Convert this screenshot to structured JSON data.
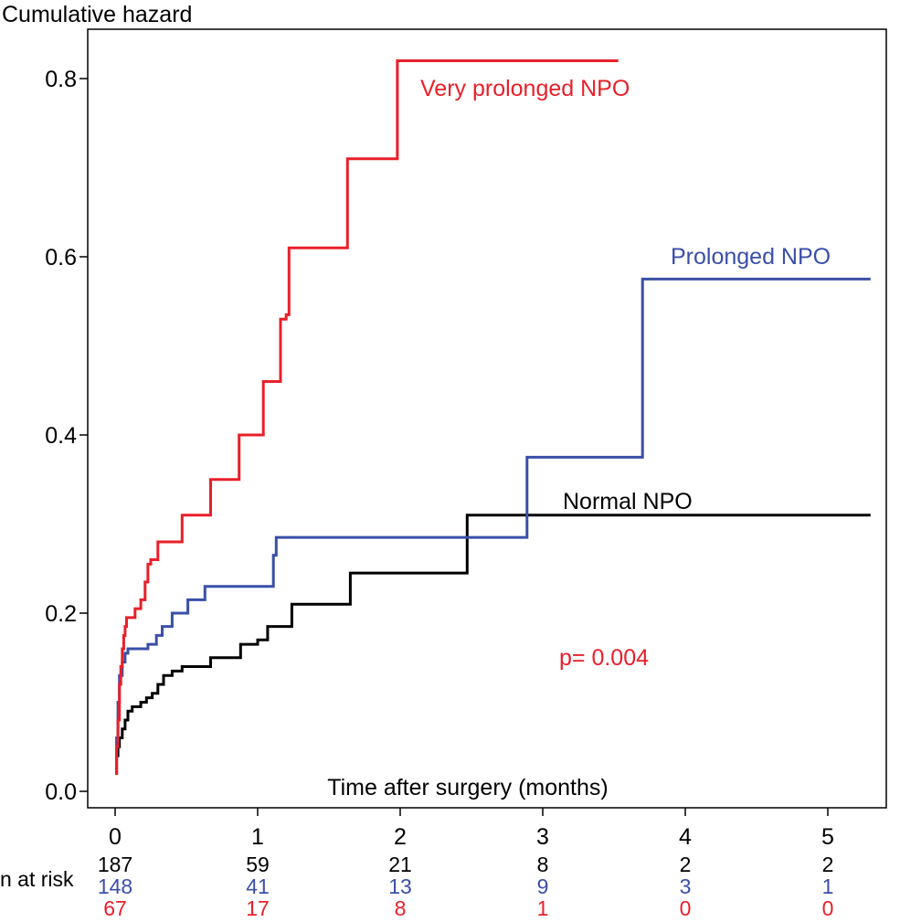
{
  "chart_data": {
    "type": "line",
    "step": true,
    "ylabel": "Cumulative hazard",
    "xlabel": "Time after surgery (months)",
    "xlim": [
      0,
      5.3
    ],
    "ylim": [
      0,
      0.85
    ],
    "xticks": [
      "0",
      "1",
      "2",
      "3",
      "4",
      "5"
    ],
    "yticks": [
      "0.0",
      "0.2",
      "0.4",
      "0.6",
      "0.8"
    ],
    "annotation": {
      "text": "p= 0.004",
      "color": "#e8202a"
    },
    "risk_table": {
      "label": "n at risk",
      "rows": [
        {
          "series": "Normal NPO",
          "color": "#000000",
          "values": [
            "187",
            "59",
            "21",
            "8",
            "2",
            "2"
          ]
        },
        {
          "series": "Prolonged NPO",
          "color": "#3a4fa8",
          "values": [
            "148",
            "41",
            "13",
            "9",
            "3",
            "1"
          ]
        },
        {
          "series": "Very prolonged NPO",
          "color": "#e8202a",
          "values": [
            "67",
            "17",
            "8",
            "1",
            "0",
            "0"
          ]
        }
      ]
    },
    "series": [
      {
        "name": "Normal NPO",
        "label": "Normal NPO",
        "color": "#000000",
        "x": [
          0,
          0.01,
          0.02,
          0.03,
          0.05,
          0.07,
          0.09,
          0.12,
          0.18,
          0.22,
          0.26,
          0.3,
          0.34,
          0.4,
          0.47,
          0.67,
          0.88,
          1.0,
          1.07,
          1.24,
          1.65,
          2.47,
          5.3
        ],
        "y": [
          0.02,
          0.04,
          0.05,
          0.06,
          0.07,
          0.08,
          0.09,
          0.095,
          0.1,
          0.105,
          0.11,
          0.12,
          0.13,
          0.135,
          0.14,
          0.15,
          0.165,
          0.17,
          0.185,
          0.21,
          0.245,
          0.31,
          0.31
        ]
      },
      {
        "name": "Prolonged NPO",
        "label": "Prolonged NPO",
        "color": "#3a4fa8",
        "x": [
          0,
          0.01,
          0.02,
          0.03,
          0.05,
          0.07,
          0.09,
          0.23,
          0.29,
          0.33,
          0.4,
          0.51,
          0.63,
          1.11,
          1.13,
          2.89,
          3.7,
          5.3
        ],
        "y": [
          0.02,
          0.06,
          0.1,
          0.13,
          0.145,
          0.155,
          0.16,
          0.165,
          0.175,
          0.185,
          0.2,
          0.215,
          0.23,
          0.265,
          0.285,
          0.375,
          0.575,
          0.575
        ]
      },
      {
        "name": "Very prolonged NPO",
        "label": "Very prolonged NPO",
        "color": "#e8202a",
        "x": [
          0,
          0.01,
          0.02,
          0.03,
          0.04,
          0.05,
          0.06,
          0.07,
          0.08,
          0.14,
          0.18,
          0.21,
          0.23,
          0.25,
          0.3,
          0.47,
          0.67,
          0.87,
          1.04,
          1.16,
          1.2,
          1.22,
          1.63,
          1.98,
          3.53
        ],
        "y": [
          0.02,
          0.05,
          0.08,
          0.12,
          0.14,
          0.16,
          0.175,
          0.185,
          0.195,
          0.205,
          0.215,
          0.235,
          0.255,
          0.26,
          0.28,
          0.31,
          0.35,
          0.4,
          0.46,
          0.53,
          0.535,
          0.61,
          0.71,
          0.82,
          0.82
        ]
      }
    ]
  }
}
